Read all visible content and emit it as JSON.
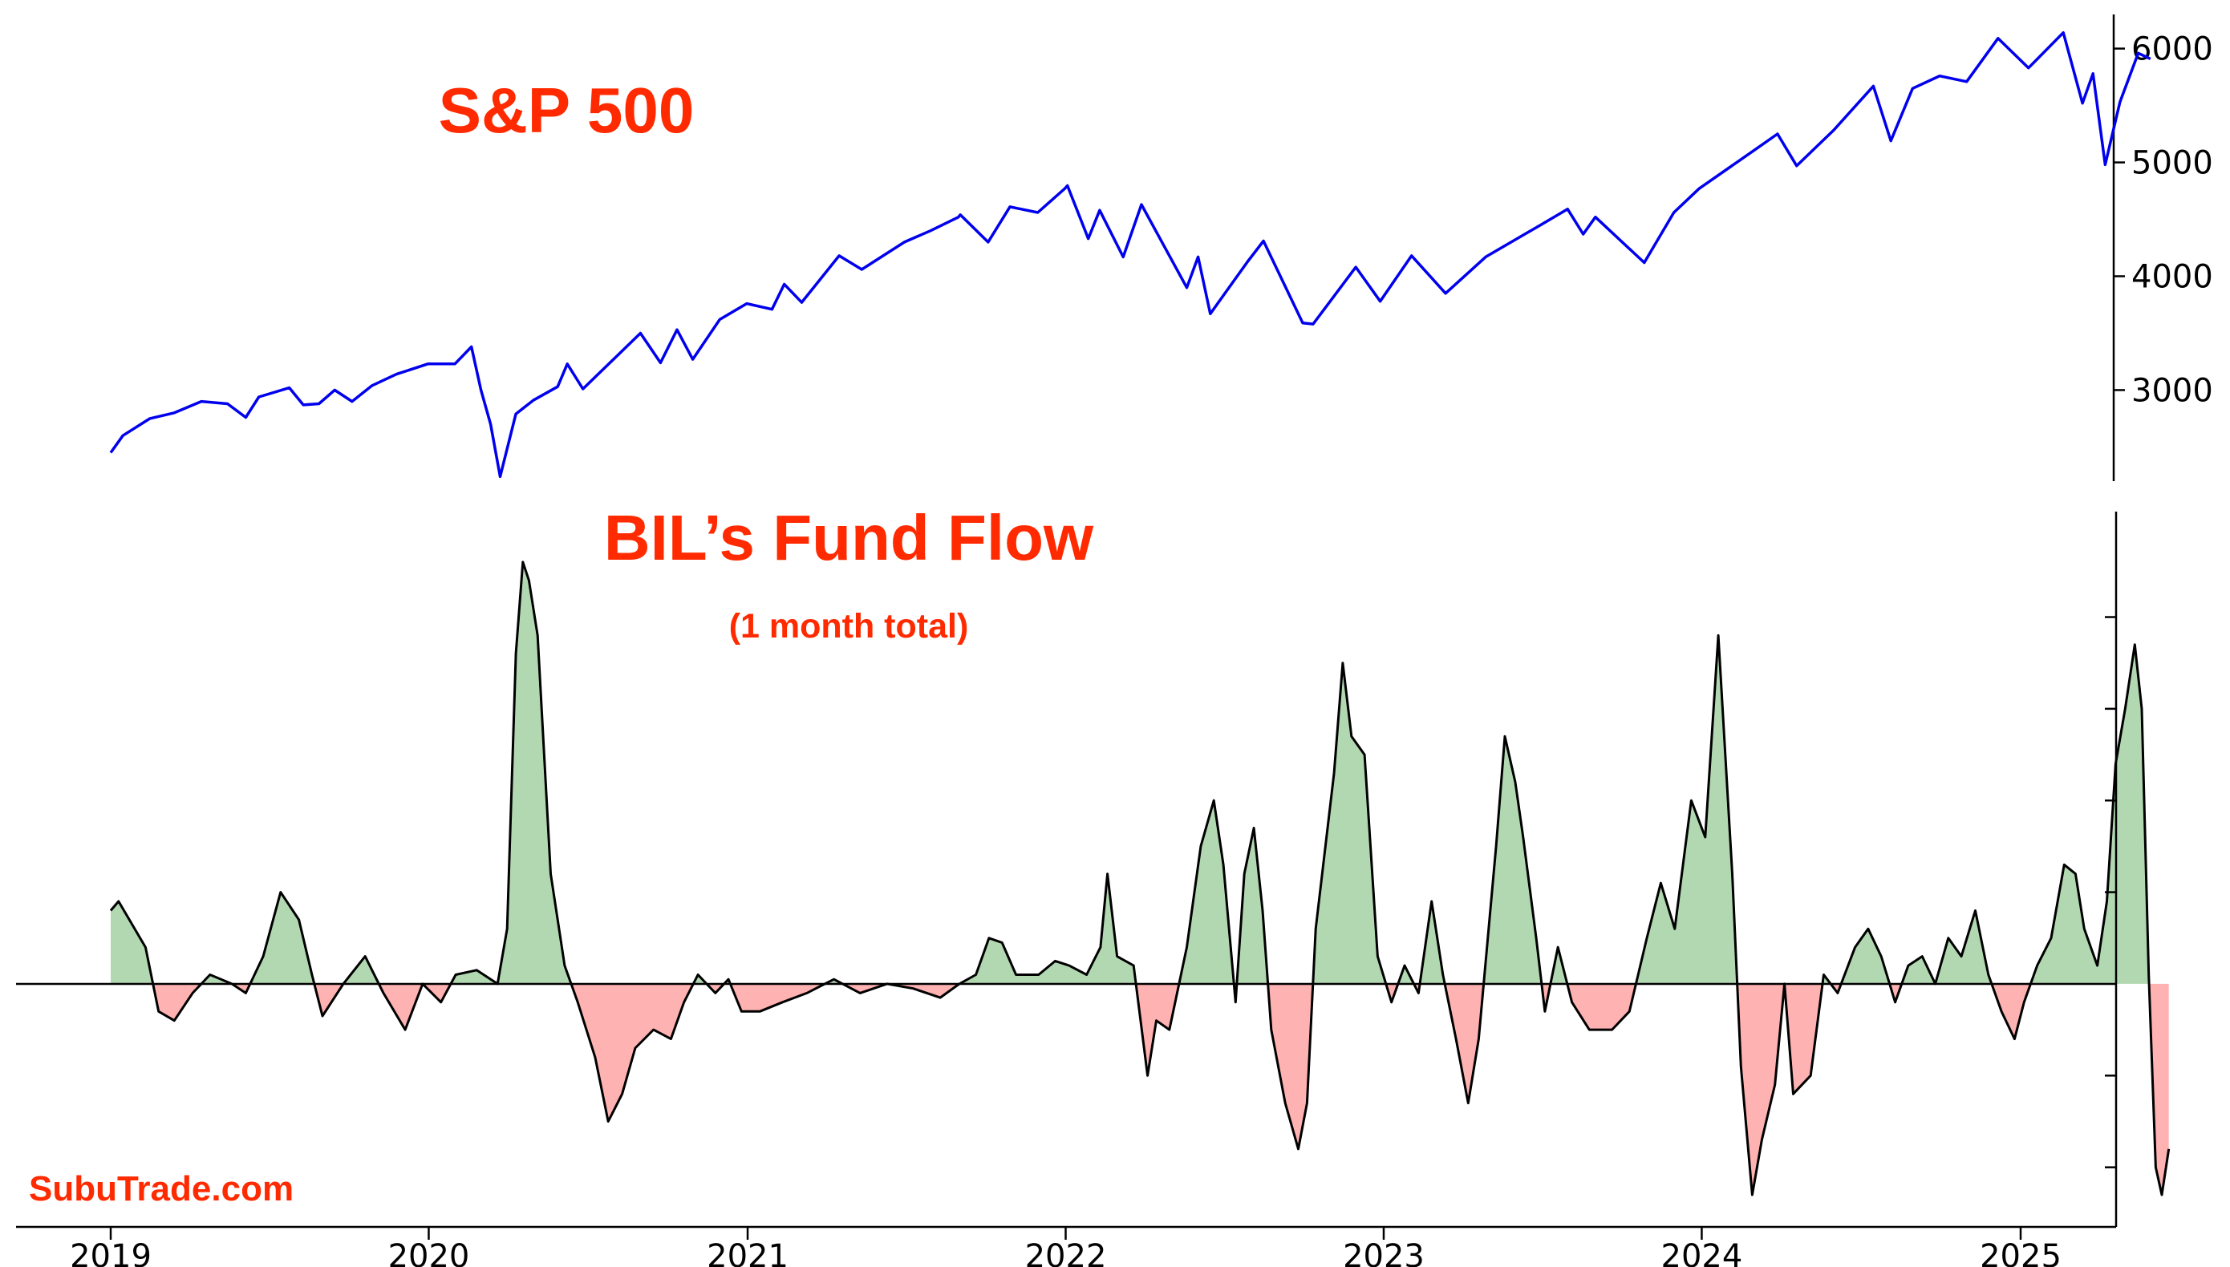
{
  "chart_data": [
    {
      "type": "line",
      "title": "S&P 500",
      "x_range": [
        "2019-01-01",
        "2025-06-01"
      ],
      "ylim": [
        2200,
        6300
      ],
      "y_ticks": [
        3000,
        4000,
        5000,
        6000
      ],
      "series": [
        {
          "color": "#0000ee",
          "points": [
            [
              "2019-01-01",
              2450
            ],
            [
              "2019-01-15",
              2600
            ],
            [
              "2019-02-15",
              2750
            ],
            [
              "2019-03-15",
              2800
            ],
            [
              "2019-04-15",
              2900
            ],
            [
              "2019-05-15",
              2880
            ],
            [
              "2019-06-05",
              2760
            ],
            [
              "2019-06-20",
              2940
            ],
            [
              "2019-07-25",
              3020
            ],
            [
              "2019-08-10",
              2870
            ],
            [
              "2019-08-28",
              2880
            ],
            [
              "2019-09-15",
              3000
            ],
            [
              "2019-10-05",
              2900
            ],
            [
              "2019-10-28",
              3040
            ],
            [
              "2019-11-25",
              3140
            ],
            [
              "2019-12-31",
              3230
            ],
            [
              "2020-01-31",
              3230
            ],
            [
              "2020-02-19",
              3380
            ],
            [
              "2020-03-01",
              3000
            ],
            [
              "2020-03-12",
              2700
            ],
            [
              "2020-03-23",
              2240
            ],
            [
              "2020-04-10",
              2790
            ],
            [
              "2020-04-30",
              2910
            ],
            [
              "2020-05-28",
              3030
            ],
            [
              "2020-06-08",
              3230
            ],
            [
              "2020-06-26",
              3010
            ],
            [
              "2020-07-31",
              3270
            ],
            [
              "2020-08-31",
              3500
            ],
            [
              "2020-09-23",
              3240
            ],
            [
              "2020-10-12",
              3530
            ],
            [
              "2020-10-30",
              3270
            ],
            [
              "2020-11-30",
              3620
            ],
            [
              "2020-12-31",
              3760
            ],
            [
              "2021-01-29",
              3710
            ],
            [
              "2021-02-12",
              3930
            ],
            [
              "2021-03-04",
              3770
            ],
            [
              "2021-04-16",
              4180
            ],
            [
              "2021-05-12",
              4060
            ],
            [
              "2021-06-30",
              4300
            ],
            [
              "2021-07-30",
              4400
            ],
            [
              "2021-08-31",
              4520
            ],
            [
              "2021-09-02",
              4540
            ],
            [
              "2021-10-04",
              4300
            ],
            [
              "2021-10-29",
              4610
            ],
            [
              "2021-11-30",
              4560
            ],
            [
              "2021-12-31",
              4770
            ],
            [
              "2022-01-03",
              4796
            ],
            [
              "2022-01-27",
              4330
            ],
            [
              "2022-02-09",
              4580
            ],
            [
              "2022-03-08",
              4170
            ],
            [
              "2022-03-29",
              4630
            ],
            [
              "2022-05-20",
              3900
            ],
            [
              "2022-06-02",
              4170
            ],
            [
              "2022-06-16",
              3670
            ],
            [
              "2022-07-29",
              4130
            ],
            [
              "2022-08-16",
              4310
            ],
            [
              "2022-09-30",
              3590
            ],
            [
              "2022-10-12",
              3580
            ],
            [
              "2022-11-30",
              4080
            ],
            [
              "2022-12-28",
              3780
            ],
            [
              "2023-02-02",
              4180
            ],
            [
              "2023-03-13",
              3850
            ],
            [
              "2023-04-28",
              4170
            ],
            [
              "2023-06-30",
              4450
            ],
            [
              "2023-07-31",
              4590
            ],
            [
              "2023-08-18",
              4370
            ],
            [
              "2023-09-01",
              4520
            ],
            [
              "2023-10-27",
              4120
            ],
            [
              "2023-11-30",
              4560
            ],
            [
              "2023-12-29",
              4770
            ],
            [
              "2024-02-29",
              5100
            ],
            [
              "2024-03-28",
              5250
            ],
            [
              "2024-04-19",
              4970
            ],
            [
              "2024-05-31",
              5280
            ],
            [
              "2024-07-16",
              5670
            ],
            [
              "2024-08-05",
              5190
            ],
            [
              "2024-08-30",
              5650
            ],
            [
              "2024-09-30",
              5760
            ],
            [
              "2024-10-31",
              5710
            ],
            [
              "2024-12-06",
              6090
            ],
            [
              "2025-01-10",
              5830
            ],
            [
              "2025-02-19",
              6140
            ],
            [
              "2025-03-13",
              5520
            ],
            [
              "2025-03-25",
              5780
            ],
            [
              "2025-04-08",
              4980
            ],
            [
              "2025-04-25",
              5530
            ],
            [
              "2025-05-16",
              5960
            ],
            [
              "2025-05-30",
              5910
            ]
          ]
        }
      ]
    },
    {
      "type": "area",
      "title": "BIL’s Fund Flow",
      "subtitle": "(1 month total)",
      "x_range": [
        "2019-01-01",
        "2025-06-01"
      ],
      "x_ticks": [
        "2019",
        "2020",
        "2021",
        "2022",
        "2023",
        "2024",
        "2025"
      ],
      "ylim": [
        -2.65,
        5.15
      ],
      "y_ticks": [
        -2,
        -1,
        1,
        2,
        3,
        4
      ],
      "zero_line": true,
      "positive_color": "#b2d8b2",
      "negative_color": "#ffb2b2",
      "series": [
        {
          "color": "#000000",
          "points": [
            [
              "2019-01-01",
              0.8
            ],
            [
              "2019-01-10",
              0.9
            ],
            [
              "2019-02-10",
              0.4
            ],
            [
              "2019-02-25",
              -0.3
            ],
            [
              "2019-03-15",
              -0.4
            ],
            [
              "2019-04-05",
              -0.1
            ],
            [
              "2019-04-25",
              0.1
            ],
            [
              "2019-05-20",
              0.0
            ],
            [
              "2019-06-05",
              -0.1
            ],
            [
              "2019-06-25",
              0.3
            ],
            [
              "2019-07-15",
              1.0
            ],
            [
              "2019-08-05",
              0.7
            ],
            [
              "2019-08-20",
              0.1
            ],
            [
              "2019-09-01",
              -0.35
            ],
            [
              "2019-09-25",
              0.0
            ],
            [
              "2019-10-20",
              0.3
            ],
            [
              "2019-11-10",
              -0.1
            ],
            [
              "2019-12-05",
              -0.5
            ],
            [
              "2019-12-25",
              0.0
            ],
            [
              "2020-01-15",
              -0.2
            ],
            [
              "2020-02-01",
              0.1
            ],
            [
              "2020-02-25",
              0.15
            ],
            [
              "2020-03-20",
              0.0
            ],
            [
              "2020-03-31",
              0.6
            ],
            [
              "2020-04-10",
              3.6
            ],
            [
              "2020-04-18",
              4.6
            ],
            [
              "2020-04-25",
              4.4
            ],
            [
              "2020-05-05",
              3.8
            ],
            [
              "2020-05-20",
              1.2
            ],
            [
              "2020-06-05",
              0.2
            ],
            [
              "2020-06-20",
              -0.2
            ],
            [
              "2020-07-10",
              -0.8
            ],
            [
              "2020-07-25",
              -1.5
            ],
            [
              "2020-08-10",
              -1.2
            ],
            [
              "2020-08-25",
              -0.7
            ],
            [
              "2020-09-15",
              -0.5
            ],
            [
              "2020-10-05",
              -0.6
            ],
            [
              "2020-10-20",
              -0.2
            ],
            [
              "2020-11-05",
              0.1
            ],
            [
              "2020-11-25",
              -0.1
            ],
            [
              "2020-12-10",
              0.05
            ],
            [
              "2020-12-25",
              -0.3
            ],
            [
              "2021-01-15",
              -0.3
            ],
            [
              "2021-02-10",
              -0.2
            ],
            [
              "2021-03-10",
              -0.1
            ],
            [
              "2021-04-10",
              0.05
            ],
            [
              "2021-05-10",
              -0.1
            ],
            [
              "2021-06-10",
              0.0
            ],
            [
              "2021-07-10",
              -0.05
            ],
            [
              "2021-08-10",
              -0.15
            ],
            [
              "2021-09-01",
              0.0
            ],
            [
              "2021-09-20",
              0.1
            ],
            [
              "2021-10-05",
              0.5
            ],
            [
              "2021-10-20",
              0.45
            ],
            [
              "2021-11-05",
              0.1
            ],
            [
              "2021-12-01",
              0.1
            ],
            [
              "2021-12-20",
              0.25
            ],
            [
              "2022-01-05",
              0.2
            ],
            [
              "2022-01-25",
              0.1
            ],
            [
              "2022-02-10",
              0.4
            ],
            [
              "2022-02-18",
              1.2
            ],
            [
              "2022-03-01",
              0.3
            ],
            [
              "2022-03-20",
              0.2
            ],
            [
              "2022-04-05",
              -1.0
            ],
            [
              "2022-04-15",
              -0.4
            ],
            [
              "2022-04-30",
              -0.5
            ],
            [
              "2022-05-20",
              0.4
            ],
            [
              "2022-06-05",
              1.5
            ],
            [
              "2022-06-20",
              2.0
            ],
            [
              "2022-07-01",
              1.3
            ],
            [
              "2022-07-15",
              -0.2
            ],
            [
              "2022-07-25",
              1.2
            ],
            [
              "2022-08-05",
              1.7
            ],
            [
              "2022-08-15",
              0.8
            ],
            [
              "2022-08-25",
              -0.5
            ],
            [
              "2022-09-10",
              -1.3
            ],
            [
              "2022-09-25",
              -1.8
            ],
            [
              "2022-10-05",
              -1.3
            ],
            [
              "2022-10-15",
              0.6
            ],
            [
              "2022-11-05",
              2.3
            ],
            [
              "2022-11-15",
              3.5
            ],
            [
              "2022-11-25",
              2.7
            ],
            [
              "2022-12-10",
              2.5
            ],
            [
              "2022-12-25",
              0.3
            ],
            [
              "2023-01-10",
              -0.2
            ],
            [
              "2023-01-25",
              0.2
            ],
            [
              "2023-02-10",
              -0.1
            ],
            [
              "2023-02-25",
              0.9
            ],
            [
              "2023-03-10",
              0.1
            ],
            [
              "2023-03-25",
              -0.6
            ],
            [
              "2023-04-08",
              -1.3
            ],
            [
              "2023-04-20",
              -0.6
            ],
            [
              "2023-05-10",
              1.5
            ],
            [
              "2023-05-20",
              2.7
            ],
            [
              "2023-06-01",
              2.2
            ],
            [
              "2023-06-10",
              1.6
            ],
            [
              "2023-06-25",
              0.5
            ],
            [
              "2023-07-05",
              -0.3
            ],
            [
              "2023-07-20",
              0.4
            ],
            [
              "2023-08-05",
              -0.2
            ],
            [
              "2023-08-25",
              -0.5
            ],
            [
              "2023-09-20",
              -0.5
            ],
            [
              "2023-10-10",
              -0.3
            ],
            [
              "2023-10-30",
              0.5
            ],
            [
              "2023-11-15",
              1.1
            ],
            [
              "2023-12-01",
              0.6
            ],
            [
              "2023-12-20",
              2.0
            ],
            [
              "2024-01-05",
              1.6
            ],
            [
              "2024-01-20",
              3.8
            ],
            [
              "2024-02-05",
              1.2
            ],
            [
              "2024-02-15",
              -0.9
            ],
            [
              "2024-02-28",
              -2.3
            ],
            [
              "2024-03-10",
              -1.7
            ],
            [
              "2024-03-25",
              -1.1
            ],
            [
              "2024-04-05",
              0.0
            ],
            [
              "2024-04-15",
              -1.2
            ],
            [
              "2024-05-05",
              -1.0
            ],
            [
              "2024-05-20",
              0.1
            ],
            [
              "2024-06-05",
              -0.1
            ],
            [
              "2024-06-25",
              0.4
            ],
            [
              "2024-07-10",
              0.6
            ],
            [
              "2024-07-25",
              0.3
            ],
            [
              "2024-08-10",
              -0.2
            ],
            [
              "2024-08-25",
              0.2
            ],
            [
              "2024-09-10",
              0.3
            ],
            [
              "2024-09-25",
              0.0
            ],
            [
              "2024-10-10",
              0.5
            ],
            [
              "2024-10-25",
              0.3
            ],
            [
              "2024-11-10",
              0.8
            ],
            [
              "2024-11-25",
              0.1
            ],
            [
              "2024-12-10",
              -0.3
            ],
            [
              "2024-12-25",
              -0.6
            ],
            [
              "2025-01-05",
              -0.2
            ],
            [
              "2025-01-20",
              0.2
            ],
            [
              "2025-02-05",
              0.5
            ],
            [
              "2025-02-20",
              1.3
            ],
            [
              "2025-03-05",
              1.2
            ],
            [
              "2025-03-15",
              0.6
            ],
            [
              "2025-03-30",
              0.2
            ],
            [
              "2025-04-10",
              0.9
            ],
            [
              "2025-04-20",
              2.4
            ],
            [
              "2025-05-01",
              3.0
            ],
            [
              "2025-05-12",
              3.7
            ],
            [
              "2025-05-20",
              3.0
            ],
            [
              "2025-05-28",
              0.1
            ],
            [
              "2025-06-05",
              -2.0
            ],
            [
              "2025-06-12",
              -2.3
            ],
            [
              "2025-06-20",
              -1.8
            ]
          ]
        }
      ]
    }
  ],
  "watermark": "SubuTrade.com",
  "colors": {
    "title": "#ff2a00",
    "sp_line": "#0000ee",
    "flow_line": "#000000"
  }
}
